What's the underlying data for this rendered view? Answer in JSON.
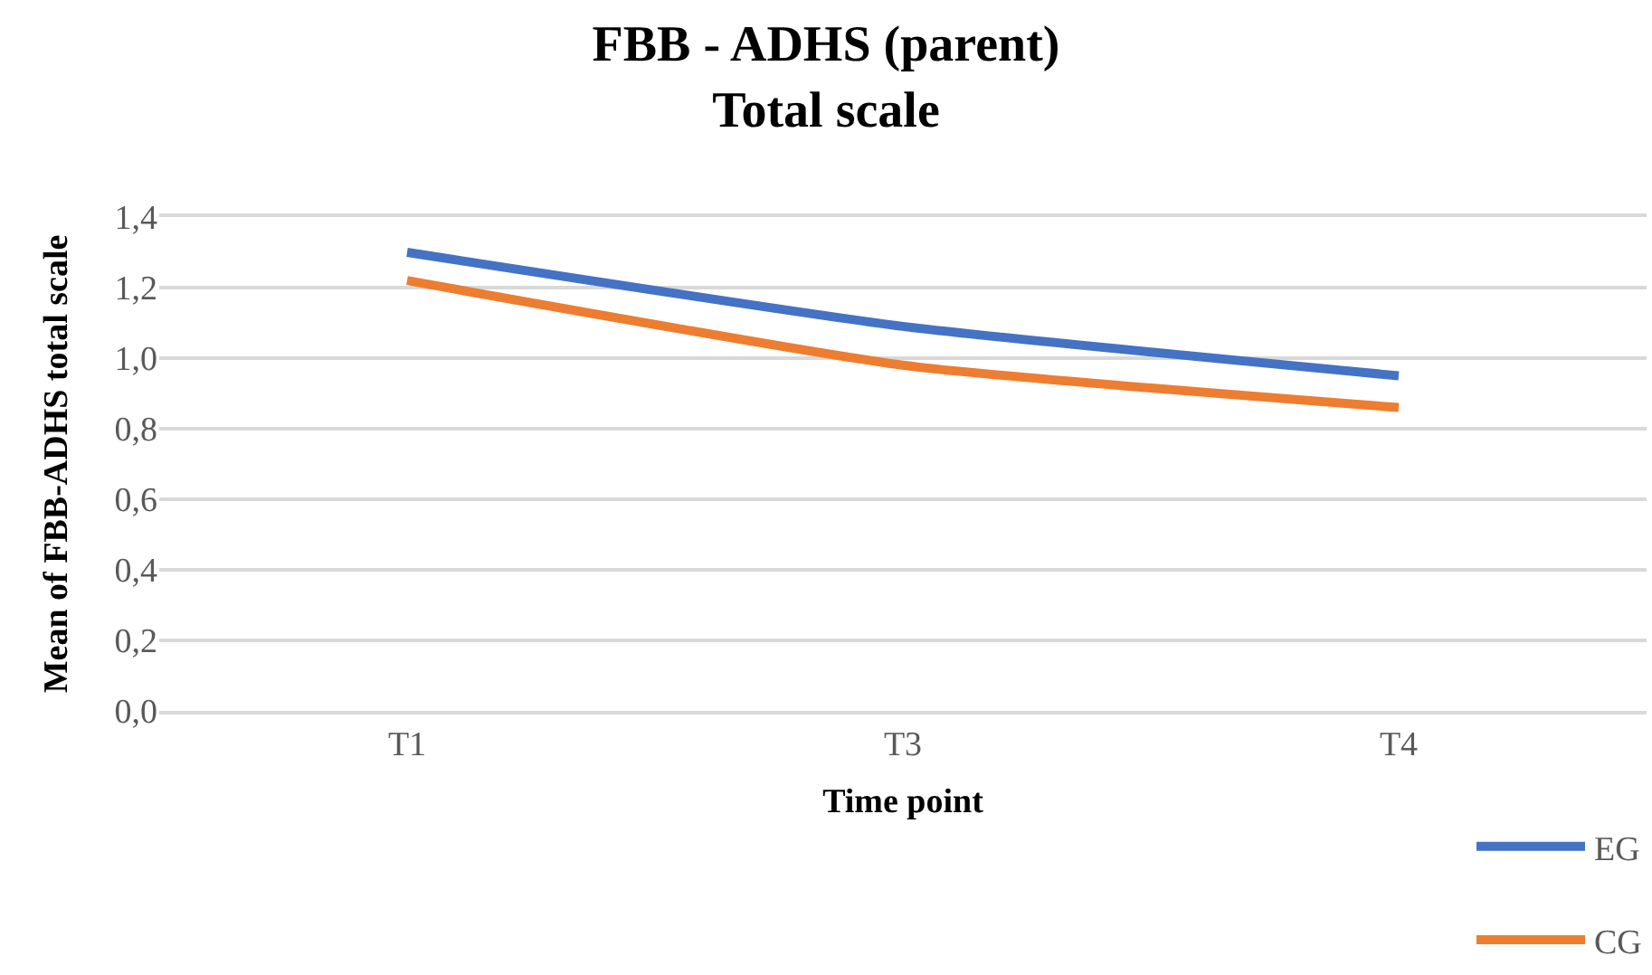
{
  "chart_data": {
    "type": "line",
    "title": "FBB - ADHS (parent)\nTotal scale",
    "xlabel": "Time point",
    "ylabel": "Mean of FBB-ADHS total scale",
    "categories": [
      "T1",
      "T3",
      "T4"
    ],
    "series": [
      {
        "name": "EG",
        "color": "#4472c4",
        "values": [
          1.3,
          1.09,
          0.95
        ]
      },
      {
        "name": "CG",
        "color": "#ed7d31",
        "values": [
          1.22,
          0.98,
          0.86
        ]
      }
    ],
    "ylim": [
      0,
      1.4
    ],
    "yticks": [
      {
        "value": 0,
        "label": "0,0"
      },
      {
        "value": 0.2,
        "label": "0,2"
      },
      {
        "value": 0.4,
        "label": "0,4"
      },
      {
        "value": 0.6,
        "label": "0,6"
      },
      {
        "value": 0.8,
        "label": "0,8"
      },
      {
        "value": 1.0,
        "label": "1,0"
      },
      {
        "value": 1.2,
        "label": "1,2"
      },
      {
        "value": 1.4,
        "label": "1,4"
      }
    ],
    "grid": "y",
    "legend": "bottom right"
  }
}
